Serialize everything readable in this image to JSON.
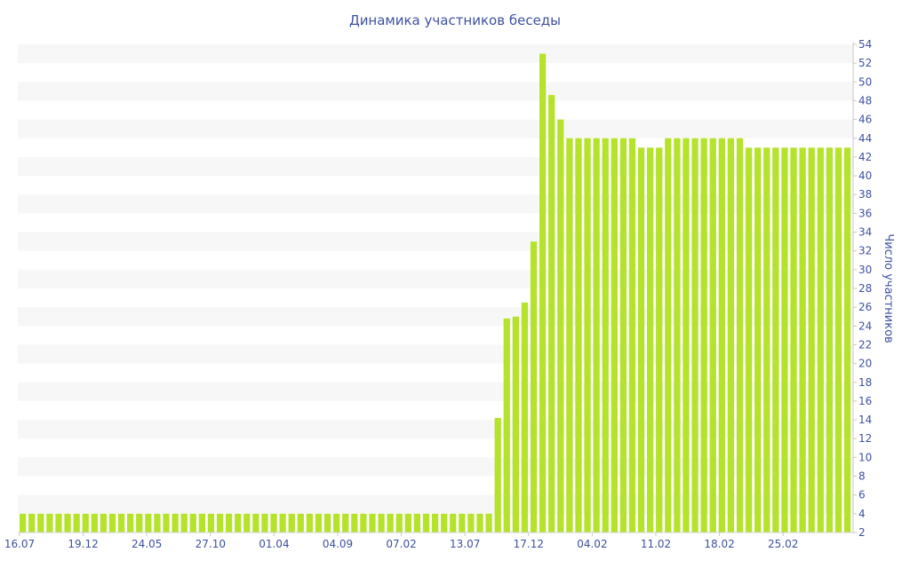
{
  "chart_data": {
    "type": "bar",
    "title": "Динамика участников беседы",
    "ylabel": "Число участников",
    "xlabel": "",
    "y_axis_side": "right",
    "ylim": [
      2,
      54
    ],
    "y_ticks": [
      2,
      4,
      6,
      8,
      10,
      12,
      14,
      16,
      18,
      20,
      22,
      24,
      26,
      28,
      30,
      32,
      34,
      36,
      38,
      40,
      42,
      44,
      46,
      48,
      50,
      52,
      54
    ],
    "x_tick_labels": [
      "16.07",
      "19.12",
      "24.05",
      "27.10",
      "01.04",
      "04.09",
      "07.02",
      "13.07",
      "17.12",
      "04.02",
      "11.02",
      "18.02",
      "25.02"
    ],
    "grid": "horizontal alternating bands",
    "bar_color": "#b5e22a",
    "band_color": "#f7f7f7",
    "text_color": "#3f51a0",
    "values": [
      4,
      4,
      4,
      4,
      4,
      4,
      4,
      4,
      4,
      4,
      4,
      4,
      4,
      4,
      4,
      4,
      4,
      4,
      4,
      4,
      4,
      4,
      4,
      4,
      4,
      4,
      4,
      4,
      4,
      4,
      4,
      4,
      4,
      4,
      4,
      4,
      4,
      4,
      4,
      4,
      4,
      4,
      4,
      4,
      4,
      4,
      4,
      4,
      4,
      4,
      4,
      4,
      4,
      14.2,
      24.8,
      25,
      26.5,
      33,
      53,
      48.6,
      46,
      44,
      44,
      44,
      44,
      44,
      44,
      44,
      44,
      43,
      43,
      43,
      44,
      44,
      44,
      44,
      44,
      44,
      44,
      44,
      44,
      43,
      43,
      43,
      43,
      43,
      43,
      43,
      43,
      43,
      43,
      43,
      43
    ]
  }
}
